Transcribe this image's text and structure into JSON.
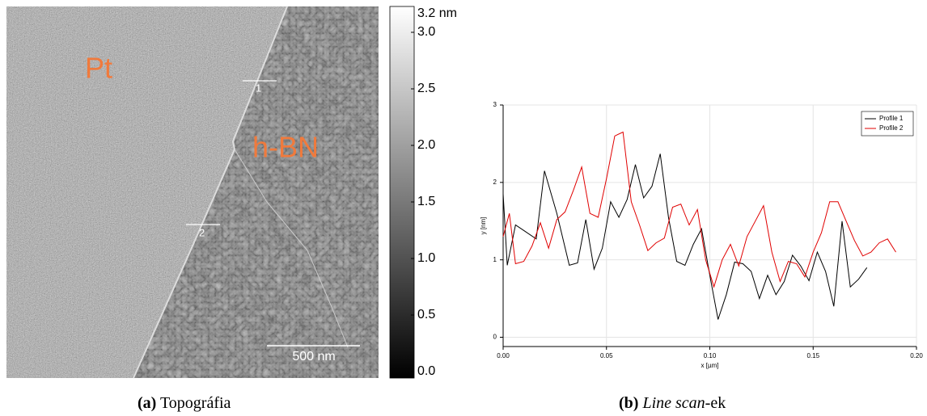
{
  "panel_a": {
    "region_labels": [
      "Pt",
      "h-BN"
    ],
    "profile_markers": [
      "1",
      "2"
    ],
    "scale_bar": "500 nm",
    "colorbar": {
      "unit_label": "3.2 nm",
      "lim": [
        0,
        3.2
      ],
      "ticks": [
        {
          "value": 0,
          "label": "0.0"
        },
        {
          "value": 0.5,
          "label": "0.5"
        },
        {
          "value": 1,
          "label": "1.0"
        },
        {
          "value": 1.5,
          "label": "1.5"
        },
        {
          "value": 2,
          "label": "2.0"
        },
        {
          "value": 2.5,
          "label": "2.5"
        },
        {
          "value": 3,
          "label": "3.0"
        }
      ]
    }
  },
  "caption_a": {
    "label": "(a)",
    "text": "Topográfia"
  },
  "caption_b": {
    "label": "(b)",
    "text": "Line scan",
    "suffix": "-ek"
  },
  "chart_data": {
    "type": "line",
    "x_label": "x [µm]",
    "y_label": "y [nm]",
    "grid": true,
    "legend": "upper right",
    "xlim": [
      0,
      0.2
    ],
    "ylim": [
      -0.12,
      3
    ],
    "xticks": [
      {
        "value": 0,
        "label": "0.00"
      },
      {
        "value": 0.05,
        "label": "0.05"
      },
      {
        "value": 0.1,
        "label": "0.10"
      },
      {
        "value": 0.15,
        "label": "0.15"
      },
      {
        "value": 0.2,
        "label": "0.20"
      }
    ],
    "yticks": [
      0,
      1,
      2,
      3
    ],
    "series": [
      {
        "name": "Profile 1",
        "color": "#000000",
        "x": [
          0,
          0.002,
          0.006,
          0.01,
          0.016,
          0.02,
          0.026,
          0.032,
          0.036,
          0.04,
          0.044,
          0.048,
          0.052,
          0.056,
          0.06,
          0.064,
          0.068,
          0.072,
          0.076,
          0.08,
          0.084,
          0.088,
          0.092,
          0.096,
          0.1,
          0.104,
          0.108,
          0.112,
          0.116,
          0.12,
          0.124,
          0.128,
          0.132,
          0.136,
          0.14,
          0.144,
          0.148,
          0.152,
          0.156,
          0.16,
          0.164,
          0.168,
          0.172,
          0.176
        ],
        "values": [
          1.85,
          0.93,
          1.45,
          1.38,
          1.27,
          2.15,
          1.6,
          0.93,
          0.96,
          1.52,
          0.88,
          1.15,
          1.75,
          1.55,
          1.78,
          2.23,
          1.8,
          1.95,
          2.37,
          1.55,
          0.98,
          0.93,
          1.2,
          1.4,
          0.8,
          0.23,
          0.55,
          0.97,
          0.95,
          0.85,
          0.5,
          0.8,
          0.55,
          0.72,
          1.06,
          0.92,
          0.73,
          1.1,
          0.85,
          0.4,
          1.5,
          0.65,
          0.75,
          0.9
        ]
      },
      {
        "name": "Profile 2",
        "color": "#e00000",
        "x": [
          0,
          0.003,
          0.006,
          0.01,
          0.014,
          0.018,
          0.022,
          0.026,
          0.03,
          0.034,
          0.038,
          0.042,
          0.046,
          0.05,
          0.054,
          0.058,
          0.062,
          0.066,
          0.07,
          0.074,
          0.078,
          0.082,
          0.086,
          0.09,
          0.094,
          0.098,
          0.102,
          0.106,
          0.11,
          0.114,
          0.118,
          0.122,
          0.126,
          0.13,
          0.134,
          0.138,
          0.142,
          0.146,
          0.15,
          0.154,
          0.158,
          0.162,
          0.166,
          0.17,
          0.174,
          0.178,
          0.182,
          0.186,
          0.19
        ],
        "values": [
          1.3,
          1.6,
          0.95,
          0.98,
          1.18,
          1.48,
          1.15,
          1.52,
          1.62,
          1.9,
          2.2,
          1.6,
          1.55,
          2.05,
          2.6,
          2.65,
          1.75,
          1.45,
          1.12,
          1.22,
          1.28,
          1.68,
          1.72,
          1.45,
          1.65,
          1.0,
          0.65,
          1.0,
          1.2,
          0.92,
          1.3,
          1.5,
          1.7,
          1.1,
          0.72,
          0.98,
          0.95,
          0.78,
          1.1,
          1.35,
          1.75,
          1.75,
          1.5,
          1.25,
          1.05,
          1.1,
          1.22,
          1.27,
          1.1
        ]
      }
    ]
  }
}
